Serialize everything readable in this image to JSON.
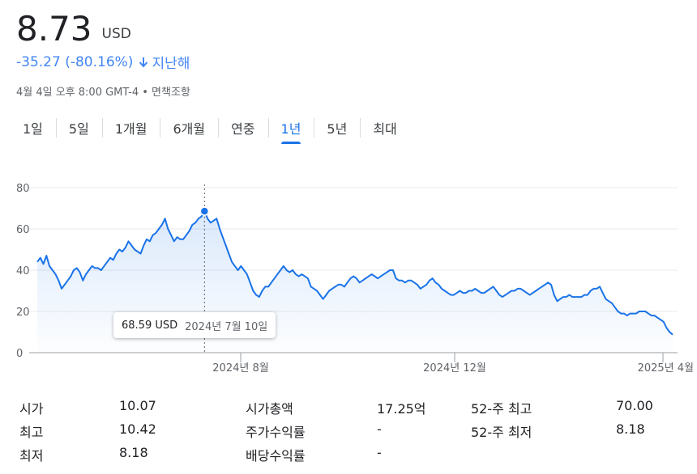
{
  "quote": {
    "price": "8.73",
    "currency": "USD",
    "change": "-35.27 (-80.16%)",
    "period": "지난해",
    "timestamp": "4월 4일 오후 8:00 GMT-4 • 면책조항",
    "change_color": "#4285f4"
  },
  "tabs": [
    {
      "label": "1일"
    },
    {
      "label": "5일"
    },
    {
      "label": "1개월"
    },
    {
      "label": "6개월"
    },
    {
      "label": "연중"
    },
    {
      "label": "1년",
      "active": true
    },
    {
      "label": "5년"
    },
    {
      "label": "최대"
    }
  ],
  "chart_data": {
    "type": "area",
    "y_ticks": [
      0,
      20,
      40,
      60,
      80
    ],
    "ylim": [
      0,
      80
    ],
    "x_tick_labels": [
      "2024년 8월",
      "2024년 12월",
      "2025년 4월"
    ],
    "grid": true,
    "line_color": "#1a73e8",
    "values": [
      44,
      46,
      43,
      47,
      42,
      40,
      38,
      35,
      31,
      33,
      35,
      37,
      40,
      41,
      39,
      35,
      38,
      40,
      42,
      41,
      41,
      40,
      42,
      44,
      46,
      45,
      48,
      50,
      49,
      51,
      54,
      52,
      50,
      49,
      48,
      52,
      55,
      54,
      57,
      58,
      60,
      62,
      65,
      60,
      57,
      54,
      56,
      55,
      55,
      57,
      59,
      62,
      63,
      65,
      66,
      68.59,
      65,
      63,
      64,
      65,
      60,
      56,
      52,
      48,
      44,
      42,
      40,
      42,
      40,
      38,
      34,
      30,
      28,
      27,
      30,
      32,
      32,
      34,
      36,
      38,
      40,
      42,
      40,
      39,
      40,
      38,
      37,
      38,
      37,
      36,
      32,
      31,
      30,
      28,
      26,
      28,
      30,
      31,
      32,
      33,
      33,
      32,
      34,
      36,
      37,
      36,
      34,
      35,
      36,
      37,
      38,
      37,
      36,
      37,
      38,
      39,
      40,
      40,
      36,
      35,
      35,
      34,
      35,
      35,
      34,
      33,
      31,
      32,
      33,
      35,
      36,
      34,
      33,
      31,
      30,
      29,
      28,
      28,
      29,
      30,
      29,
      29,
      30,
      30,
      31,
      30,
      29,
      29,
      30,
      31,
      32,
      30,
      28,
      27,
      28,
      29,
      30,
      30,
      31,
      31,
      30,
      29,
      28,
      29,
      30,
      31,
      32,
      33,
      34,
      33,
      28,
      25,
      26,
      27,
      27,
      28,
      27,
      27,
      27,
      27,
      28,
      28,
      30,
      31,
      31,
      32,
      29,
      26,
      25,
      24,
      22,
      20,
      19,
      19,
      18,
      19,
      19,
      19,
      20,
      20,
      20,
      19,
      18,
      18,
      17,
      16,
      15,
      12,
      10,
      8.73
    ],
    "highlight": {
      "value": 68.59,
      "label": "68.59 USD",
      "date": "2024년 7월 10일"
    }
  },
  "stats": [
    [
      {
        "label": "시가",
        "value": "10.07"
      },
      {
        "label": "시가총액",
        "value": "17.25억"
      },
      {
        "label": "52-주 최고",
        "value": "70.00"
      }
    ],
    [
      {
        "label": "최고",
        "value": "10.42"
      },
      {
        "label": "주가수익률",
        "value": "-"
      },
      {
        "label": "52-주 최저",
        "value": "8.18"
      }
    ],
    [
      {
        "label": "최저",
        "value": "8.18"
      },
      {
        "label": "배당수익률",
        "value": "-"
      }
    ]
  ]
}
